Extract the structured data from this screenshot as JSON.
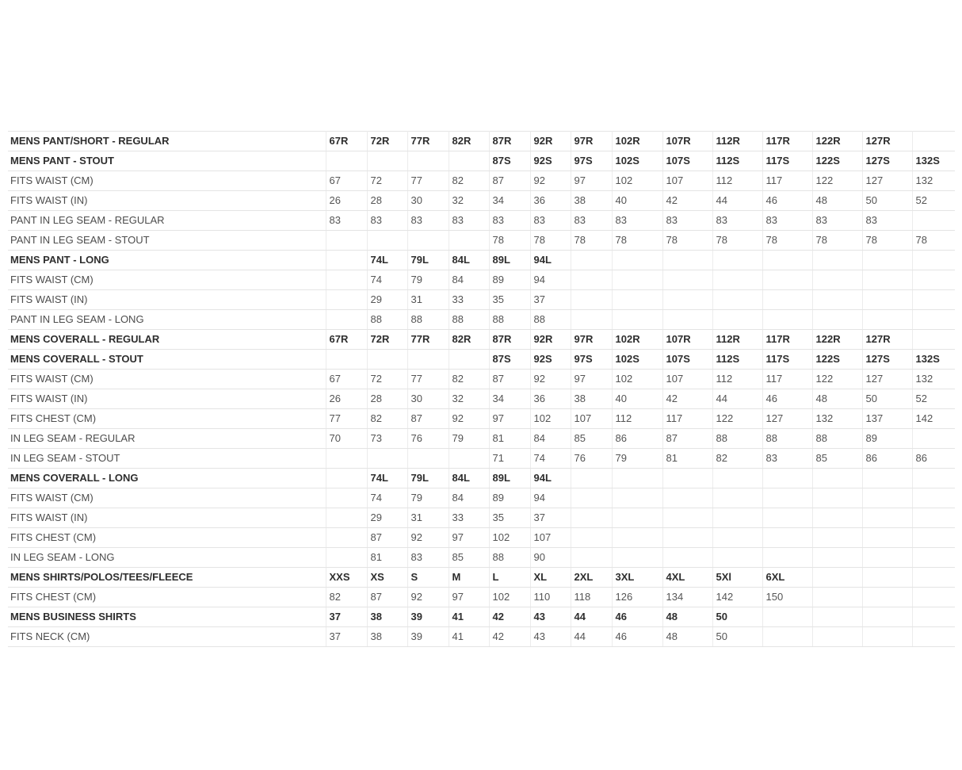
{
  "page": {
    "background_color": "#ffffff",
    "description": "Mens garment size chart table"
  },
  "table": {
    "colors": {
      "border": "#e4e4e4",
      "section_text": "#2e2e2e",
      "data_text": "#555555",
      "background": "#ffffff"
    },
    "data_columns": 14,
    "rows": [
      {
        "label": "MENS PANT/SHORT - REGULAR",
        "bold": true,
        "values": [
          "67R",
          "72R",
          "77R",
          "82R",
          "87R",
          "92R",
          "97R",
          "102R",
          "107R",
          "112R",
          "117R",
          "122R",
          "127R",
          ""
        ]
      },
      {
        "label": "MENS PANT - STOUT",
        "bold": true,
        "values": [
          "",
          "",
          "",
          "",
          "87S",
          "92S",
          "97S",
          "102S",
          "107S",
          "112S",
          "117S",
          "122S",
          "127S",
          "132S"
        ]
      },
      {
        "label": "FITS WAIST (CM)",
        "bold": false,
        "values": [
          "67",
          "72",
          "77",
          "82",
          "87",
          "92",
          "97",
          "102",
          "107",
          "112",
          "117",
          "122",
          "127",
          "132"
        ]
      },
      {
        "label": "FITS WAIST (IN)",
        "bold": false,
        "values": [
          "26",
          "28",
          "30",
          "32",
          "34",
          "36",
          "38",
          "40",
          "42",
          "44",
          "46",
          "48",
          "50",
          "52"
        ]
      },
      {
        "label": "PANT IN LEG SEAM - REGULAR",
        "bold": false,
        "values": [
          "83",
          "83",
          "83",
          "83",
          "83",
          "83",
          "83",
          "83",
          "83",
          "83",
          "83",
          "83",
          "83",
          ""
        ]
      },
      {
        "label": "PANT IN LEG SEAM - STOUT",
        "bold": false,
        "values": [
          "",
          "",
          "",
          "",
          "78",
          "78",
          "78",
          "78",
          "78",
          "78",
          "78",
          "78",
          "78",
          "78"
        ]
      },
      {
        "label": "MENS PANT - LONG",
        "bold": true,
        "values": [
          "",
          "74L",
          "79L",
          "84L",
          "89L",
          "94L",
          "",
          "",
          "",
          "",
          "",
          "",
          "",
          ""
        ]
      },
      {
        "label": "FITS WAIST (CM)",
        "bold": false,
        "values": [
          "",
          "74",
          "79",
          "84",
          "89",
          "94",
          "",
          "",
          "",
          "",
          "",
          "",
          "",
          ""
        ]
      },
      {
        "label": "FITS WAIST (IN)",
        "bold": false,
        "values": [
          "",
          "29",
          "31",
          "33",
          "35",
          "37",
          "",
          "",
          "",
          "",
          "",
          "",
          "",
          ""
        ]
      },
      {
        "label": "PANT IN LEG SEAM - LONG",
        "bold": false,
        "values": [
          "",
          "88",
          "88",
          "88",
          "88",
          "88",
          "",
          "",
          "",
          "",
          "",
          "",
          "",
          ""
        ]
      },
      {
        "label": "MENS COVERALL - REGULAR",
        "bold": true,
        "values": [
          "67R",
          "72R",
          "77R",
          "82R",
          "87R",
          "92R",
          "97R",
          "102R",
          "107R",
          "112R",
          "117R",
          "122R",
          "127R",
          ""
        ]
      },
      {
        "label": "MENS COVERALL - STOUT",
        "bold": true,
        "values": [
          "",
          "",
          "",
          "",
          "87S",
          "92S",
          "97S",
          "102S",
          "107S",
          "112S",
          "117S",
          "122S",
          "127S",
          "132S"
        ]
      },
      {
        "label": "FITS WAIST (CM)",
        "bold": false,
        "values": [
          "67",
          "72",
          "77",
          "82",
          "87",
          "92",
          "97",
          "102",
          "107",
          "112",
          "117",
          "122",
          "127",
          "132"
        ]
      },
      {
        "label": "FITS WAIST (IN)",
        "bold": false,
        "values": [
          "26",
          "28",
          "30",
          "32",
          "34",
          "36",
          "38",
          "40",
          "42",
          "44",
          "46",
          "48",
          "50",
          "52"
        ]
      },
      {
        "label": "FITS CHEST (CM)",
        "bold": false,
        "values": [
          "77",
          "82",
          "87",
          "92",
          "97",
          "102",
          "107",
          "112",
          "117",
          "122",
          "127",
          "132",
          "137",
          "142"
        ]
      },
      {
        "label": "IN LEG SEAM - REGULAR",
        "bold": false,
        "values": [
          "70",
          "73",
          "76",
          "79",
          "81",
          "84",
          "85",
          "86",
          "87",
          "88",
          "88",
          "88",
          "89",
          ""
        ]
      },
      {
        "label": "IN LEG SEAM - STOUT",
        "bold": false,
        "values": [
          "",
          "",
          "",
          "",
          "71",
          "74",
          "76",
          "79",
          "81",
          "82",
          "83",
          "85",
          "86",
          "86"
        ]
      },
      {
        "label": "MENS COVERALL - LONG",
        "bold": true,
        "values": [
          "",
          "74L",
          "79L",
          "84L",
          "89L",
          "94L",
          "",
          "",
          "",
          "",
          "",
          "",
          "",
          ""
        ]
      },
      {
        "label": "FITS WAIST (CM)",
        "bold": false,
        "values": [
          "",
          "74",
          "79",
          "84",
          "89",
          "94",
          "",
          "",
          "",
          "",
          "",
          "",
          "",
          ""
        ]
      },
      {
        "label": "FITS WAIST (IN)",
        "bold": false,
        "values": [
          "",
          "29",
          "31",
          "33",
          "35",
          "37",
          "",
          "",
          "",
          "",
          "",
          "",
          "",
          ""
        ]
      },
      {
        "label": "FITS CHEST (CM)",
        "bold": false,
        "values": [
          "",
          "87",
          "92",
          "97",
          "102",
          "107",
          "",
          "",
          "",
          "",
          "",
          "",
          "",
          ""
        ]
      },
      {
        "label": "IN LEG SEAM - LONG",
        "bold": false,
        "values": [
          "",
          "81",
          "83",
          "85",
          "88",
          "90",
          "",
          "",
          "",
          "",
          "",
          "",
          "",
          ""
        ]
      },
      {
        "label": "MENS SHIRTS/POLOS/TEES/FLEECE",
        "bold": true,
        "values": [
          "XXS",
          "XS",
          "S",
          "M",
          "L",
          "XL",
          "2XL",
          "3XL",
          "4XL",
          "5Xl",
          "6XL",
          "",
          "",
          ""
        ]
      },
      {
        "label": "FITS CHEST (CM)",
        "bold": false,
        "values": [
          "82",
          "87",
          "92",
          "97",
          "102",
          "110",
          "118",
          "126",
          "134",
          "142",
          "150",
          "",
          "",
          ""
        ]
      },
      {
        "label": "MENS BUSINESS SHIRTS",
        "bold": true,
        "values": [
          "37",
          "38",
          "39",
          "41",
          "42",
          "43",
          "44",
          "46",
          "48",
          "50",
          "",
          "",
          "",
          ""
        ]
      },
      {
        "label": "FITS NECK (CM)",
        "bold": false,
        "values": [
          "37",
          "38",
          "39",
          "41",
          "42",
          "43",
          "44",
          "46",
          "48",
          "50",
          "",
          "",
          "",
          ""
        ]
      }
    ]
  }
}
